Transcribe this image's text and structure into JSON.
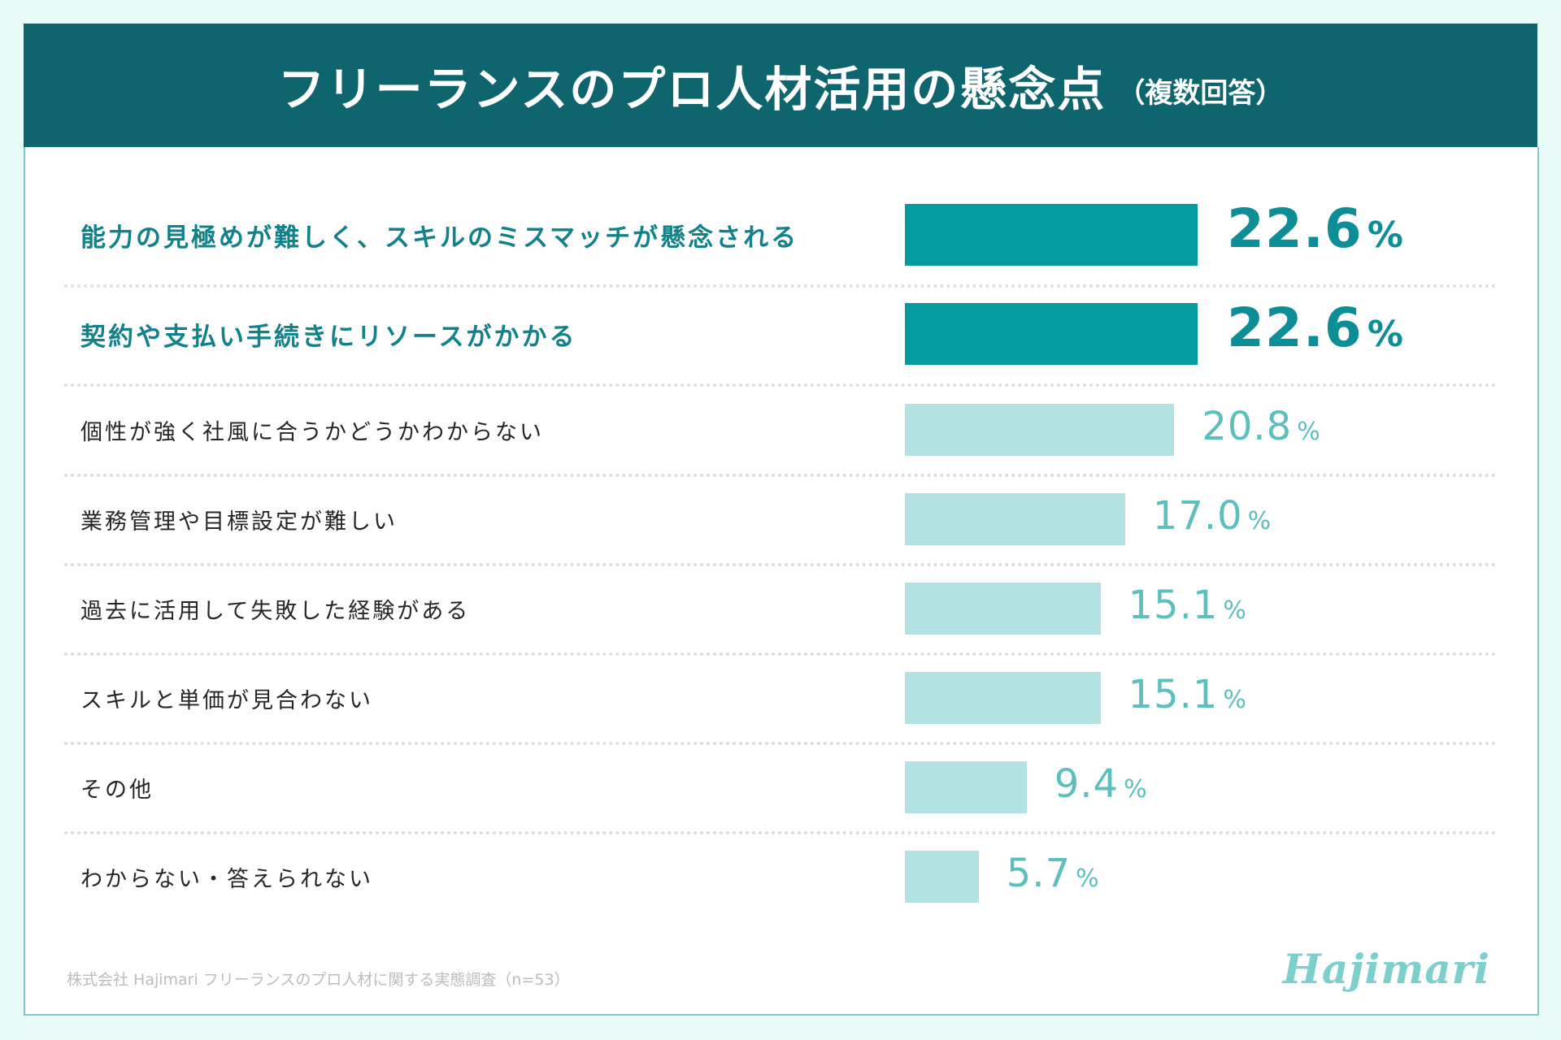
{
  "title": {
    "main": "フリーランスのプロ人材活用の懸念点",
    "sub": "（複数回答）"
  },
  "chart_data": {
    "type": "bar",
    "orientation": "horizontal",
    "title": "フリーランスのプロ人材活用の懸念点（複数回答）",
    "unit": "%",
    "categories": [
      "能力の見極めが難しく、スキルのミスマッチが懸念される",
      "契約や支払い手続きにリソースがかかる",
      "個性が強く社風に合うかどうかわからない",
      "業務管理や目標設定が難しい",
      "過去に活用して失敗した経験がある",
      "スキルと単価が見合わない",
      "その他",
      "わからない・答えられない"
    ],
    "values": [
      22.6,
      22.6,
      20.8,
      17.0,
      15.1,
      15.1,
      9.4,
      5.7
    ],
    "value_labels": [
      "22.6",
      "22.6",
      "20.8",
      "17.0",
      "15.1",
      "15.1",
      "9.4",
      "5.7"
    ],
    "highlighted_count": 2,
    "colors": {
      "highlight_bar": "#039aa0",
      "normal_bar": "#b3e2e2",
      "highlight_text": "#12818a",
      "normal_value": "#5cbfbe"
    }
  },
  "footer": {
    "source": "株式会社 Hajimari フリーランスのプロ人材に関する実態調査（n=53）",
    "logo": "Hajimari"
  }
}
